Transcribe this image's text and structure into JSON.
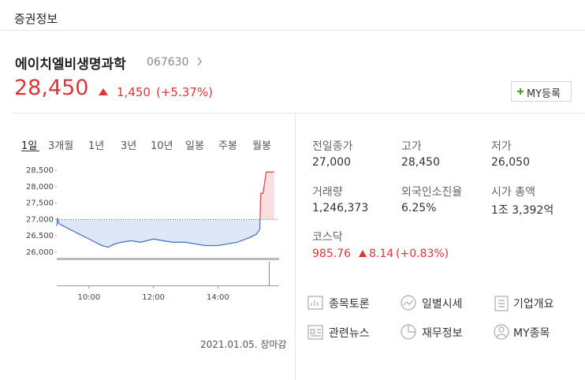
{
  "header": {
    "title": "증권정보"
  },
  "stock": {
    "name": "에이치엘비생명과학",
    "code": "067630",
    "price": "28,450",
    "change": "1,450",
    "change_pct": "(+5.37%)",
    "my_button": "MY등록"
  },
  "tabs": [
    "1일",
    "3개월",
    "1년",
    "3년",
    "10년",
    "일봉",
    "주봉",
    "월봉"
  ],
  "chart_data": {
    "type": "line",
    "x": [
      9.0,
      9.03,
      9.05,
      9.1,
      9.2,
      9.3,
      9.4,
      9.5,
      9.6,
      9.7,
      9.8,
      9.9,
      10.0,
      10.2,
      10.4,
      10.6,
      10.8,
      11.0,
      11.3,
      11.6,
      12.0,
      12.3,
      12.6,
      13.0,
      13.3,
      13.6,
      14.0,
      14.3,
      14.6,
      15.0,
      15.2,
      15.3,
      15.33,
      15.4,
      15.5,
      15.6,
      15.75
    ],
    "values": [
      26800,
      27050,
      26900,
      26850,
      26800,
      26750,
      26700,
      26650,
      26600,
      26550,
      26500,
      26450,
      26400,
      26300,
      26200,
      26150,
      26250,
      26300,
      26350,
      26300,
      26400,
      26350,
      26300,
      26300,
      26250,
      26200,
      26200,
      26250,
      26300,
      26450,
      26550,
      26700,
      27800,
      27800,
      28450,
      28450,
      28450
    ],
    "prev_close": 27000,
    "up_color": "#e8484f",
    "down_color": "#4a78c8",
    "xlim": [
      9.0,
      15.85
    ],
    "xticks": [
      {
        "value": 10,
        "label": "10:00"
      },
      {
        "value": 12,
        "label": "12:00"
      },
      {
        "value": 14,
        "label": "14:00"
      }
    ],
    "ylim": [
      25850,
      28600
    ],
    "yticks": [
      {
        "value": 26000,
        "label": "26,000"
      },
      {
        "value": 26500,
        "label": "26,500"
      },
      {
        "value": 27000,
        "label": "27,000"
      },
      {
        "value": 27500,
        "label": "27,500"
      },
      {
        "value": 28000,
        "label": "28,000"
      },
      {
        "value": 28500,
        "label": "28,500"
      }
    ],
    "date_label": "2021.01.05. 장마감"
  },
  "stats": [
    {
      "label": "전일종가",
      "value": "27,000"
    },
    {
      "label": "고가",
      "value": "28,450"
    },
    {
      "label": "저가",
      "value": "26,050"
    },
    {
      "label": "거래량",
      "value": "1,246,373"
    },
    {
      "label": "외국인소진율",
      "value": "6.25%"
    },
    {
      "label": "시가 총액",
      "value": "1조 3,392억"
    }
  ],
  "index": {
    "name": "코스닥",
    "value": "985.76",
    "change": "8.14",
    "change_pct": "(+0.83%)"
  },
  "links": [
    "종목토론",
    "일별시세",
    "기업개요",
    "관련뉴스",
    "재무정보",
    "MY종목"
  ]
}
